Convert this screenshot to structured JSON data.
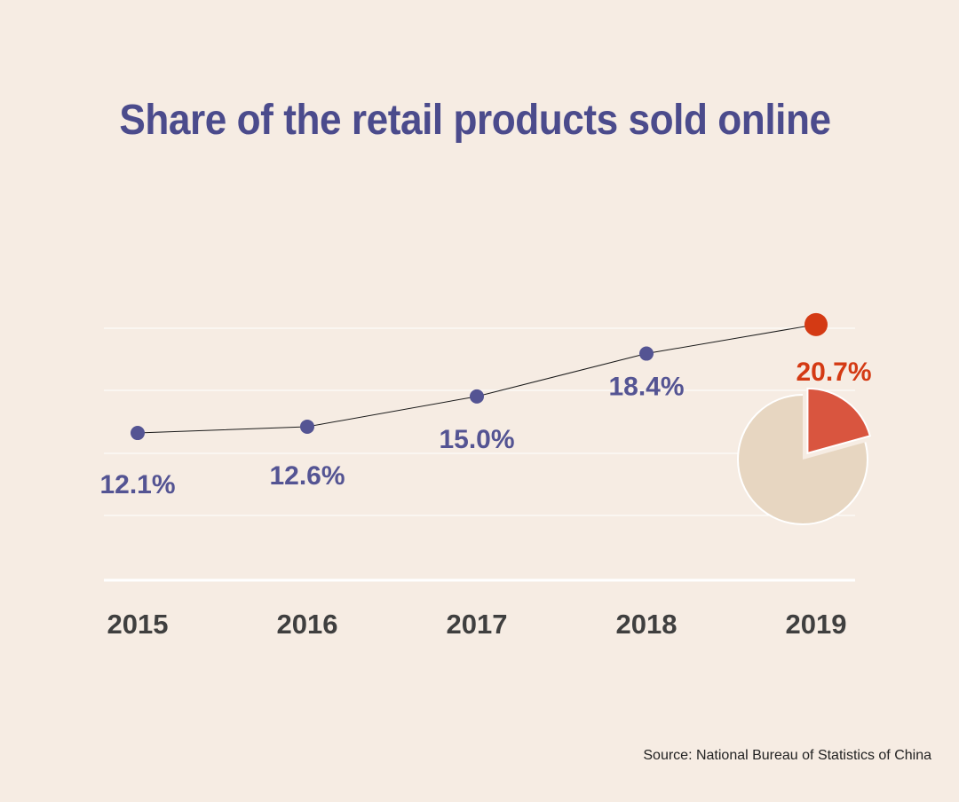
{
  "chart_data": {
    "type": "line",
    "title": "Share of the retail products sold online",
    "categories": [
      "2015",
      "2016",
      "2017",
      "2018",
      "2019"
    ],
    "series": [
      {
        "name": "Share of the retail products sold online",
        "values": [
          12.1,
          12.6,
          15.0,
          18.4,
          20.7
        ],
        "labels": [
          "12.1%",
          "12.6%",
          "15.0%",
          "18.4%",
          "20.7%"
        ]
      }
    ],
    "highlight": {
      "category": "2019",
      "pie_share_percent": 20.7
    },
    "ylim": [
      0,
      25
    ],
    "grid": true,
    "source": "Source: National Bureau of Statistics of China"
  },
  "colors": {
    "background": "#f6ece3",
    "title": "#4b4b8c",
    "series": "#545493",
    "highlight": "#d43a14",
    "pie_slice": "#d9553f",
    "pie_rest": "#e7d6c1",
    "axis_text": "#3f3f3f",
    "grid": "#ffffff"
  }
}
